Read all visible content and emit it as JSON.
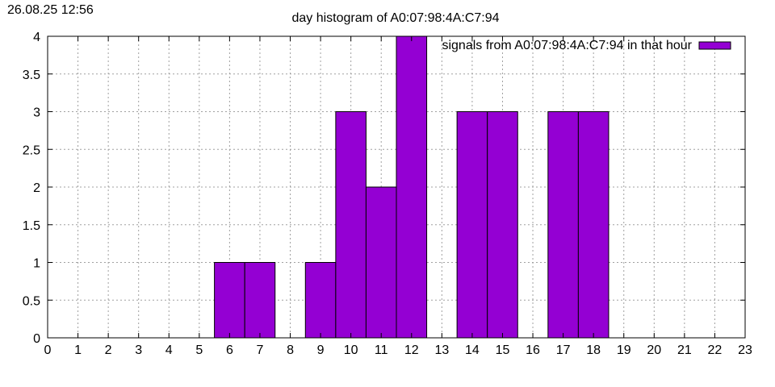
{
  "timestamp": "26.08.25 12:56",
  "chart_data": {
    "type": "bar",
    "title": "day histogram of A0:07:98:4A:C7:94",
    "xlabel": "",
    "ylabel": "",
    "xlim": [
      0,
      23
    ],
    "ylim": [
      0,
      4
    ],
    "x_ticks": [
      "0",
      "1",
      "2",
      "3",
      "4",
      "5",
      "6",
      "7",
      "8",
      "9",
      "10",
      "11",
      "12",
      "13",
      "14",
      "15",
      "16",
      "17",
      "18",
      "19",
      "20",
      "21",
      "22",
      "23"
    ],
    "y_ticks": [
      "0",
      "0.5",
      "1",
      "1.5",
      "2",
      "2.5",
      "3",
      "3.5",
      "4"
    ],
    "grid": true,
    "legend_position": "top-right",
    "series": [
      {
        "name": "signals from A0:07:98:4A:C7:94 in that hour",
        "color": "#9400d3",
        "x": [
          6,
          7,
          9,
          10,
          11,
          12,
          14,
          15,
          17,
          18
        ],
        "values": [
          1,
          1,
          1,
          3,
          2,
          4,
          3,
          3,
          3,
          3
        ]
      }
    ]
  }
}
